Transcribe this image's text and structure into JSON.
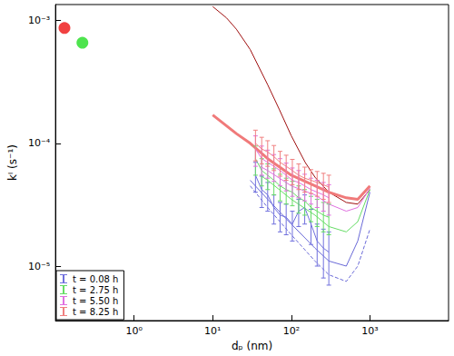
{
  "chart_data": {
    "type": "line",
    "log": true,
    "grid": false,
    "legend": "lower left",
    "x_label": "dₚ (nm)",
    "y_label": "kᴵ (s⁻¹)",
    "xlim": [
      0.1,
      10000
    ],
    "ylim": [
      3.6e-06,
      0.00135
    ],
    "xticks": [
      {
        "value": 1,
        "label": "10⁰"
      },
      {
        "value": 10,
        "label": "10¹"
      },
      {
        "value": 100,
        "label": "10²"
      },
      {
        "value": 1000,
        "label": "10³"
      }
    ],
    "yticks": [
      {
        "value": 1e-05,
        "label": "10⁻⁵"
      },
      {
        "value": 0.0001,
        "label": "10⁻⁴"
      },
      {
        "value": 0.001,
        "label": "10⁻³"
      }
    ],
    "series": [
      {
        "type": "line",
        "color": "#a01010",
        "line_style": "solid",
        "x": [
          10,
          15,
          20,
          30,
          50,
          70,
          100,
          150,
          200,
          300,
          500,
          700,
          1000
        ],
        "values": [
          0.0013,
          0.00105,
          0.00085,
          0.00058,
          0.0003,
          0.00019,
          0.000115,
          7e-05,
          5.3e-05,
          4e-05,
          3.3e-05,
          3.2e-05,
          4.2e-05
        ]
      },
      {
        "type": "line",
        "color": "#6a6ad8",
        "line_style": "dashed",
        "x": [
          30,
          50,
          100,
          200,
          300,
          500,
          700,
          1000
        ],
        "values": [
          4.5e-05,
          3e-05,
          1.8e-05,
          1.1e-05,
          8.5e-06,
          7.5e-06,
          1e-05,
          2e-05
        ]
      },
      {
        "type": "line",
        "color": "#6a6ad8",
        "line_style": "solid",
        "x": [
          30,
          50,
          100,
          200,
          300,
          500,
          700,
          1000
        ],
        "values": [
          5e-05,
          3.5e-05,
          2.2e-05,
          1.4e-05,
          1.1e-05,
          1e-05,
          1.6e-05,
          4e-05
        ]
      },
      {
        "type": "line",
        "color": "#66dd66",
        "line_style": "solid",
        "x": [
          40,
          50,
          100,
          200,
          300,
          500,
          700,
          1000
        ],
        "values": [
          5.5e-05,
          5e-05,
          3.5e-05,
          2.6e-05,
          2.1e-05,
          1.9e-05,
          2.3e-05,
          4.2e-05
        ]
      },
      {
        "type": "line",
        "color": "#e070e0",
        "line_style": "solid",
        "x": [
          40,
          50,
          100,
          200,
          300,
          500,
          700,
          1000
        ],
        "values": [
          6.5e-05,
          6e-05,
          4.5e-05,
          3.8e-05,
          3.2e-05,
          2.8e-05,
          3e-05,
          4.3e-05
        ]
      },
      {
        "type": "line",
        "color": "#f07a7a",
        "line_style": "thick",
        "x": [
          10,
          20,
          30,
          50,
          100,
          200,
          300,
          500,
          700,
          1000
        ],
        "values": [
          0.00017,
          0.00012,
          0.0001,
          7.5e-05,
          5.5e-05,
          4.5e-05,
          4e-05,
          3.6e-05,
          3.5e-05,
          4.5e-05
        ]
      },
      {
        "type": "errorbar",
        "name": "t = 0.08 h",
        "color": "#7070dd",
        "x": [
          35,
          42,
          50,
          60,
          72,
          86,
          103,
          124,
          148,
          178,
          213,
          256,
          300
        ],
        "values": [
          5.5e-05,
          4.2e-05,
          3.8e-05,
          3e-05,
          2.6e-05,
          2.5e-05,
          2.2e-05,
          2.8e-05,
          3e-05,
          2.2e-05,
          1.6e-05,
          1.4e-05,
          1.3e-05
        ],
        "errors": [
          1.5e-05,
          1.2e-05,
          1e-05,
          8e-06,
          7e-06,
          7e-06,
          6e-06,
          7e-06,
          8e-06,
          7e-06,
          6e-06,
          6e-06,
          6e-06
        ]
      },
      {
        "type": "errorbar",
        "name": "t = 2.75 h",
        "color": "#66dd66",
        "x": [
          35,
          42,
          50,
          60,
          72,
          86,
          103,
          124,
          148,
          178,
          213,
          256,
          300
        ],
        "values": [
          7.5e-05,
          6e-05,
          5.5e-05,
          5e-05,
          4.5e-05,
          4.2e-05,
          4e-05,
          3.6e-05,
          3.4e-05,
          3e-05,
          2.8e-05,
          2.6e-05,
          2.5e-05
        ],
        "errors": [
          2e-05,
          1.5e-05,
          1.3e-05,
          1.2e-05,
          1.1e-05,
          1e-05,
          9e-06,
          9e-06,
          8e-06,
          7e-06,
          7e-06,
          7e-06,
          7e-06
        ]
      },
      {
        "type": "errorbar",
        "name": "t = 5.50 h",
        "color": "#e070e0",
        "x": [
          35,
          42,
          50,
          60,
          72,
          86,
          103,
          124,
          148,
          178,
          213,
          256,
          300
        ],
        "values": [
          9e-05,
          7.5e-05,
          7e-05,
          6.5e-05,
          6e-05,
          5.5e-05,
          5e-05,
          4.8e-05,
          4.5e-05,
          4.2e-05,
          4e-05,
          3.8e-05,
          3.6e-05
        ],
        "errors": [
          2.5e-05,
          2e-05,
          1.8e-05,
          1.6e-05,
          1.5e-05,
          1.4e-05,
          1.3e-05,
          1.2e-05,
          1.1e-05,
          1e-05,
          1e-05,
          1e-05,
          1e-05
        ]
      },
      {
        "type": "errorbar",
        "name": "t = 8.25 h",
        "color": "#f08080",
        "x": [
          35,
          42,
          50,
          60,
          72,
          86,
          103,
          124,
          148,
          178,
          213,
          256,
          300
        ],
        "values": [
          0.0001,
          9e-05,
          8.5e-05,
          7.8e-05,
          7e-05,
          6.5e-05,
          6e-05,
          5.5e-05,
          5.2e-05,
          5e-05,
          4.8e-05,
          4.6e-05,
          4.4e-05
        ],
        "errors": [
          2.8e-05,
          2.2e-05,
          2e-05,
          1.8e-05,
          1.6e-05,
          1.5e-05,
          1.4e-05,
          1.3e-05,
          1.2e-05,
          1.1e-05,
          1.1e-05,
          1.1e-05,
          1.1e-05
        ]
      },
      {
        "type": "scatter",
        "color": "#ee1111",
        "marker": "circle",
        "x": [
          0.13
        ],
        "values": [
          0.00087
        ]
      },
      {
        "type": "scatter",
        "color": "#22dd22",
        "marker": "circle",
        "x": [
          0.22
        ],
        "values": [
          0.00066
        ]
      }
    ]
  }
}
